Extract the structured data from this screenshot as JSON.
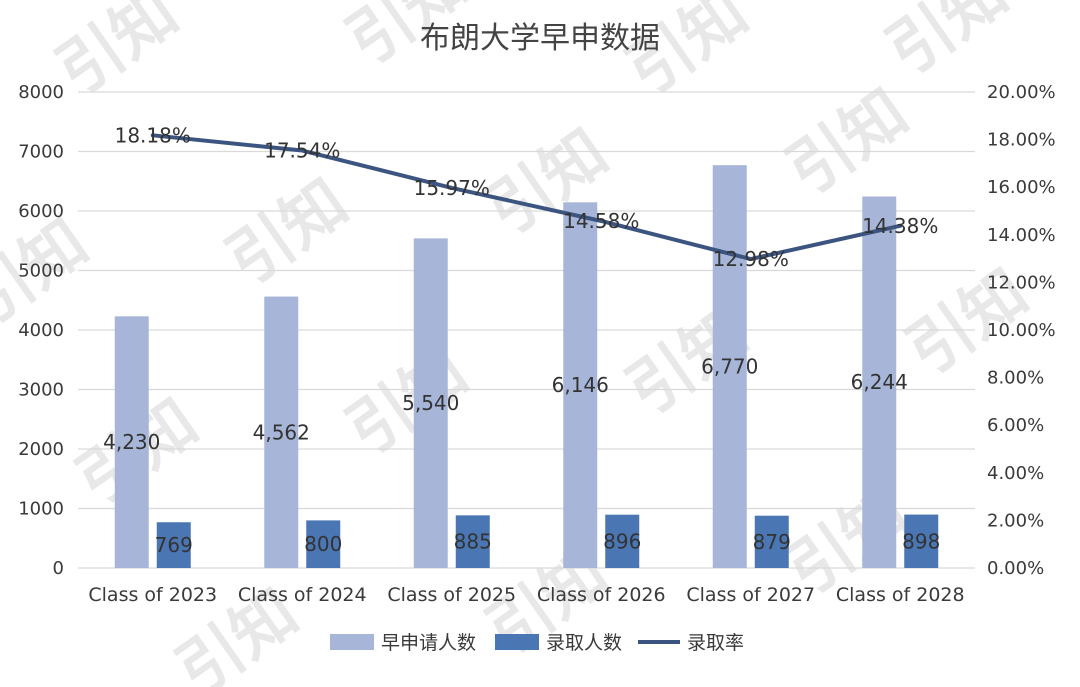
{
  "chart_data": {
    "type": "bar",
    "title": "布朗大学早申数据",
    "categories": [
      "Class of 2023",
      "Class of 2024",
      "Class of 2025",
      "Class of 2026",
      "Class of 2027",
      "Class of 2028"
    ],
    "series": [
      {
        "name": "早申请人数",
        "type": "bar",
        "axis": "left",
        "values": [
          4230,
          4562,
          5540,
          6146,
          6770,
          6244
        ],
        "labels": [
          "4,230",
          "4,562",
          "5,540",
          "6,146",
          "6,770",
          "6,244"
        ],
        "color": "#a7b6d8"
      },
      {
        "name": "录取人数",
        "type": "bar",
        "axis": "left",
        "values": [
          769,
          800,
          885,
          896,
          879,
          898
        ],
        "labels": [
          "769",
          "800",
          "885",
          "896",
          "879",
          "898"
        ],
        "color": "#4a76b4"
      },
      {
        "name": "录取率",
        "type": "line",
        "axis": "right",
        "values": [
          18.18,
          17.54,
          15.97,
          14.58,
          12.98,
          14.38
        ],
        "labels": [
          "18.18%",
          "17.54%",
          "15.97%",
          "14.58%",
          "12.98%",
          "14.38%"
        ],
        "color": "#3c5580"
      }
    ],
    "y_left": {
      "min": 0,
      "max": 8000,
      "ticks": [
        "0",
        "1000",
        "2000",
        "3000",
        "4000",
        "5000",
        "6000",
        "7000",
        "8000"
      ]
    },
    "y_right": {
      "min": 0,
      "max": 20,
      "ticks": [
        "0.00%",
        "2.00%",
        "4.00%",
        "6.00%",
        "8.00%",
        "10.00%",
        "12.00%",
        "14.00%",
        "16.00%",
        "18.00%",
        "20.00%"
      ]
    },
    "grid": true,
    "legend_position": "bottom"
  },
  "watermark": {
    "text": "引知"
  }
}
